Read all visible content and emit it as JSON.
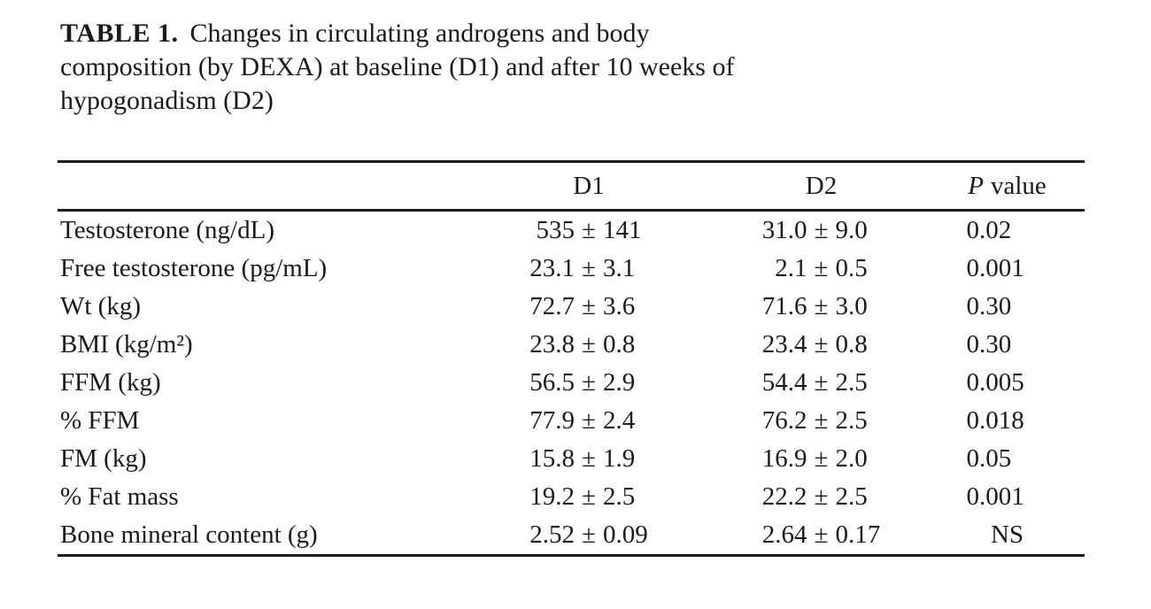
{
  "caption": {
    "label": "TABLE 1.",
    "line1": "Changes in circulating androgens and body",
    "line2": "composition (by DEXA) at baseline (D1) and after 10 weeks of",
    "line3": "hypogonadism (D2)"
  },
  "table": {
    "plus_minus": "±",
    "header": {
      "d1": "D1",
      "d2": "D2",
      "p_italic": "P",
      "p_rest": "value"
    },
    "rows": [
      {
        "label": "Testosterone (ng/dL)",
        "d1_mean": "535",
        "d1_sd": "141",
        "d2_mean": "31.0",
        "d2_sd": "9.0",
        "p": "0.02"
      },
      {
        "label": "Free testosterone (pg/mL)",
        "d1_mean": "23.1",
        "d1_sd": "3.1",
        "d2_mean": "2.1",
        "d2_sd": "0.5",
        "p": "0.001"
      },
      {
        "label": "Wt (kg)",
        "d1_mean": "72.7",
        "d1_sd": "3.6",
        "d2_mean": "71.6",
        "d2_sd": "3.0",
        "p": "0.30"
      },
      {
        "label": "BMI (kg/m²)",
        "d1_mean": "23.8",
        "d1_sd": "0.8",
        "d2_mean": "23.4",
        "d2_sd": "0.8",
        "p": "0.30"
      },
      {
        "label": "FFM (kg)",
        "d1_mean": "56.5",
        "d1_sd": "2.9",
        "d2_mean": "54.4",
        "d2_sd": "2.5",
        "p": "0.005"
      },
      {
        "label": "% FFM",
        "d1_mean": "77.9",
        "d1_sd": "2.4",
        "d2_mean": "76.2",
        "d2_sd": "2.5",
        "p": "0.018"
      },
      {
        "label": "FM (kg)",
        "d1_mean": "15.8",
        "d1_sd": "1.9",
        "d2_mean": "16.9",
        "d2_sd": "2.0",
        "p": "0.05"
      },
      {
        "label": "% Fat mass",
        "d1_mean": "19.2",
        "d1_sd": "2.5",
        "d2_mean": "22.2",
        "d2_sd": "2.5",
        "p": "0.001"
      },
      {
        "label": "Bone mineral content (g)",
        "d1_mean": "2.52",
        "d1_sd": "0.09",
        "d2_mean": "2.64",
        "d2_sd": "0.17",
        "p": "NS"
      }
    ]
  }
}
